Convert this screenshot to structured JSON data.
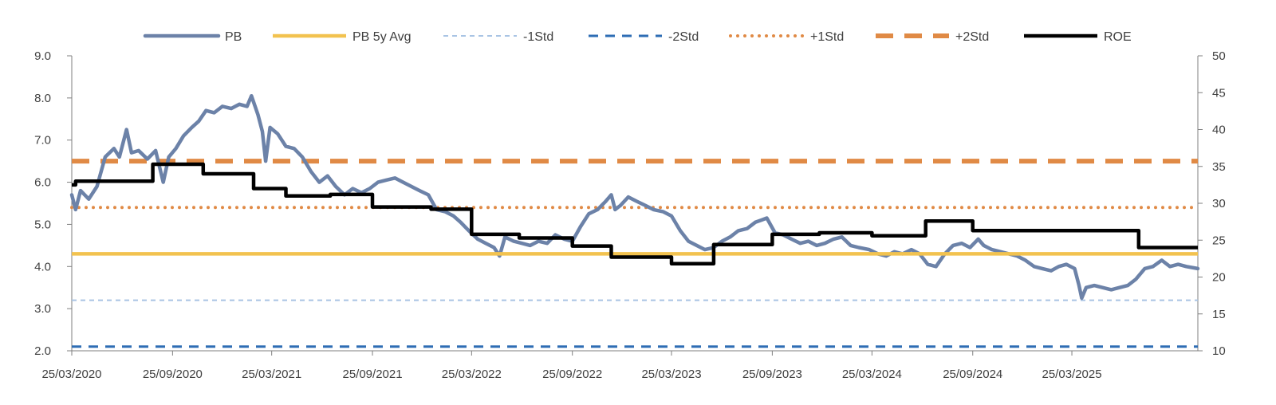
{
  "chart_data": {
    "type": "line",
    "title": "",
    "xlabel": "",
    "ylabel": "",
    "y2label": "",
    "x_range": [
      "2020-03-25",
      "2025-11-10"
    ],
    "ylim_left": [
      2.0,
      9.0
    ],
    "ylim_right": [
      10,
      50
    ],
    "yticks_left": [
      "2.0",
      "3.0",
      "4.0",
      "5.0",
      "6.0",
      "7.0",
      "8.0",
      "9.0"
    ],
    "yticks_right": [
      "10",
      "15",
      "20",
      "25",
      "30",
      "35",
      "40",
      "45",
      "50"
    ],
    "xticks": [
      {
        "date": "2020-03-25",
        "label": "25/03/2020"
      },
      {
        "date": "2020-09-25",
        "label": "25/09/2020"
      },
      {
        "date": "2021-03-25",
        "label": "25/03/2021"
      },
      {
        "date": "2021-09-25",
        "label": "25/09/2021"
      },
      {
        "date": "2022-03-25",
        "label": "25/03/2022"
      },
      {
        "date": "2022-09-25",
        "label": "25/09/2022"
      },
      {
        "date": "2023-03-25",
        "label": "25/03/2023"
      },
      {
        "date": "2023-09-25",
        "label": "25/09/2023"
      },
      {
        "date": "2024-03-25",
        "label": "25/03/2024"
      },
      {
        "date": "2024-09-25",
        "label": "25/09/2024"
      },
      {
        "date": "2025-03-25",
        "label": "25/03/2025"
      }
    ],
    "grid": false,
    "legend_position": "top",
    "series": [
      {
        "name": "PB",
        "axis": "left",
        "style": "solid",
        "color": "#6C82A8",
        "points": [
          [
            "2020-03-25",
            5.7
          ],
          [
            "2020-04-01",
            5.35
          ],
          [
            "2020-04-10",
            5.8
          ],
          [
            "2020-04-25",
            5.6
          ],
          [
            "2020-05-10",
            5.9
          ],
          [
            "2020-05-25",
            6.6
          ],
          [
            "2020-06-10",
            6.8
          ],
          [
            "2020-06-20",
            6.6
          ],
          [
            "2020-07-03",
            7.25
          ],
          [
            "2020-07-12",
            6.7
          ],
          [
            "2020-07-25",
            6.75
          ],
          [
            "2020-08-10",
            6.55
          ],
          [
            "2020-08-25",
            6.75
          ],
          [
            "2020-09-08",
            6.0
          ],
          [
            "2020-09-18",
            6.6
          ],
          [
            "2020-10-01",
            6.8
          ],
          [
            "2020-10-15",
            7.1
          ],
          [
            "2020-10-30",
            7.3
          ],
          [
            "2020-11-12",
            7.45
          ],
          [
            "2020-11-25",
            7.7
          ],
          [
            "2020-12-10",
            7.65
          ],
          [
            "2020-12-25",
            7.8
          ],
          [
            "2021-01-10",
            7.75
          ],
          [
            "2021-01-25",
            7.85
          ],
          [
            "2021-02-08",
            7.8
          ],
          [
            "2021-02-16",
            8.05
          ],
          [
            "2021-02-28",
            7.6
          ],
          [
            "2021-03-08",
            7.2
          ],
          [
            "2021-03-14",
            6.5
          ],
          [
            "2021-03-22",
            7.3
          ],
          [
            "2021-04-05",
            7.15
          ],
          [
            "2021-04-20",
            6.85
          ],
          [
            "2021-05-05",
            6.8
          ],
          [
            "2021-05-20",
            6.6
          ],
          [
            "2021-06-05",
            6.25
          ],
          [
            "2021-06-20",
            6.0
          ],
          [
            "2021-07-05",
            6.15
          ],
          [
            "2021-07-20",
            5.9
          ],
          [
            "2021-08-05",
            5.7
          ],
          [
            "2021-08-20",
            5.85
          ],
          [
            "2021-09-05",
            5.75
          ],
          [
            "2021-09-20",
            5.85
          ],
          [
            "2021-10-05",
            6.0
          ],
          [
            "2021-10-20",
            6.05
          ],
          [
            "2021-11-05",
            6.1
          ],
          [
            "2021-11-20",
            6.0
          ],
          [
            "2021-12-05",
            5.9
          ],
          [
            "2021-12-20",
            5.8
          ],
          [
            "2022-01-05",
            5.7
          ],
          [
            "2022-01-20",
            5.35
          ],
          [
            "2022-02-05",
            5.3
          ],
          [
            "2022-02-20",
            5.2
          ],
          [
            "2022-03-05",
            5.05
          ],
          [
            "2022-03-20",
            4.85
          ],
          [
            "2022-04-05",
            4.65
          ],
          [
            "2022-04-20",
            4.55
          ],
          [
            "2022-05-05",
            4.45
          ],
          [
            "2022-05-15",
            4.25
          ],
          [
            "2022-05-25",
            4.7
          ],
          [
            "2022-06-10",
            4.6
          ],
          [
            "2022-06-25",
            4.55
          ],
          [
            "2022-07-10",
            4.5
          ],
          [
            "2022-07-25",
            4.6
          ],
          [
            "2022-08-10",
            4.55
          ],
          [
            "2022-08-25",
            4.75
          ],
          [
            "2022-09-10",
            4.65
          ],
          [
            "2022-09-25",
            4.6
          ],
          [
            "2022-10-10",
            4.95
          ],
          [
            "2022-10-25",
            5.25
          ],
          [
            "2022-11-10",
            5.35
          ],
          [
            "2022-11-25",
            5.55
          ],
          [
            "2022-12-05",
            5.7
          ],
          [
            "2022-12-12",
            5.35
          ],
          [
            "2022-12-22",
            5.45
          ],
          [
            "2023-01-05",
            5.65
          ],
          [
            "2023-01-20",
            5.55
          ],
          [
            "2023-02-05",
            5.45
          ],
          [
            "2023-02-20",
            5.35
          ],
          [
            "2023-03-10",
            5.3
          ],
          [
            "2023-03-25",
            5.2
          ],
          [
            "2023-04-10",
            4.85
          ],
          [
            "2023-04-25",
            4.6
          ],
          [
            "2023-05-10",
            4.5
          ],
          [
            "2023-05-25",
            4.4
          ],
          [
            "2023-06-10",
            4.45
          ],
          [
            "2023-06-25",
            4.6
          ],
          [
            "2023-07-10",
            4.7
          ],
          [
            "2023-07-25",
            4.85
          ],
          [
            "2023-08-10",
            4.9
          ],
          [
            "2023-08-25",
            5.05
          ],
          [
            "2023-09-05",
            5.1
          ],
          [
            "2023-09-15",
            5.15
          ],
          [
            "2023-09-30",
            4.8
          ],
          [
            "2023-10-15",
            4.75
          ],
          [
            "2023-10-30",
            4.65
          ],
          [
            "2023-11-15",
            4.55
          ],
          [
            "2023-11-30",
            4.6
          ],
          [
            "2023-12-15",
            4.5
          ],
          [
            "2023-12-30",
            4.55
          ],
          [
            "2024-01-15",
            4.65
          ],
          [
            "2024-01-30",
            4.7
          ],
          [
            "2024-02-15",
            4.5
          ],
          [
            "2024-03-01",
            4.45
          ],
          [
            "2024-03-20",
            4.4
          ],
          [
            "2024-04-05",
            4.3
          ],
          [
            "2024-04-20",
            4.25
          ],
          [
            "2024-05-05",
            4.35
          ],
          [
            "2024-05-20",
            4.3
          ],
          [
            "2024-06-05",
            4.4
          ],
          [
            "2024-06-20",
            4.3
          ],
          [
            "2024-07-05",
            4.05
          ],
          [
            "2024-07-20",
            4.0
          ],
          [
            "2024-08-05",
            4.3
          ],
          [
            "2024-08-20",
            4.5
          ],
          [
            "2024-09-05",
            4.55
          ],
          [
            "2024-09-20",
            4.45
          ],
          [
            "2024-10-05",
            4.65
          ],
          [
            "2024-10-15",
            4.5
          ],
          [
            "2024-10-30",
            4.4
          ],
          [
            "2024-11-15",
            4.35
          ],
          [
            "2024-11-30",
            4.3
          ],
          [
            "2024-12-15",
            4.25
          ],
          [
            "2024-12-30",
            4.15
          ],
          [
            "2025-01-15",
            4.0
          ],
          [
            "2025-01-30",
            3.95
          ],
          [
            "2025-02-15",
            3.9
          ],
          [
            "2025-03-01",
            4.0
          ],
          [
            "2025-03-15",
            4.05
          ],
          [
            "2025-03-30",
            3.95
          ],
          [
            "2025-04-07",
            3.55
          ],
          [
            "2025-04-12",
            3.25
          ],
          [
            "2025-04-20",
            3.5
          ],
          [
            "2025-05-05",
            3.55
          ],
          [
            "2025-05-20",
            3.5
          ],
          [
            "2025-06-05",
            3.45
          ],
          [
            "2025-06-20",
            3.5
          ],
          [
            "2025-07-05",
            3.55
          ],
          [
            "2025-07-20",
            3.7
          ],
          [
            "2025-08-05",
            3.95
          ],
          [
            "2025-08-20",
            4.0
          ],
          [
            "2025-09-05",
            4.15
          ],
          [
            "2025-09-20",
            4.0
          ],
          [
            "2025-10-05",
            4.05
          ],
          [
            "2025-10-20",
            4.0
          ],
          [
            "2025-11-10",
            3.95
          ]
        ]
      },
      {
        "name": "PB 5y Avg",
        "axis": "left",
        "style": "solid-thick",
        "color": "#F2C24F",
        "value": 4.3
      },
      {
        "name": "-1Std",
        "axis": "left",
        "style": "dashed-thin",
        "color": "#A9C4E4",
        "value": 3.2
      },
      {
        "name": "-2Std",
        "axis": "left",
        "style": "dashed",
        "color": "#2E6DB4",
        "value": 2.1
      },
      {
        "name": "+1Std",
        "axis": "left",
        "style": "dotted",
        "color": "#E08A45",
        "value": 5.4
      },
      {
        "name": "+2Std",
        "axis": "left",
        "style": "dashed-thick",
        "color": "#E08A45",
        "value": 6.5
      },
      {
        "name": "ROE",
        "axis": "right",
        "style": "step",
        "color": "#000000",
        "points": [
          [
            "2020-03-25",
            32.5
          ],
          [
            "2020-04-01",
            33.0
          ],
          [
            "2020-08-20",
            35.3
          ],
          [
            "2020-11-20",
            34.0
          ],
          [
            "2021-02-20",
            32.0
          ],
          [
            "2021-04-20",
            31.0
          ],
          [
            "2021-07-10",
            31.2
          ],
          [
            "2021-09-25",
            29.5
          ],
          [
            "2022-01-10",
            29.2
          ],
          [
            "2022-03-25",
            25.8
          ],
          [
            "2022-06-20",
            25.3
          ],
          [
            "2022-09-25",
            24.2
          ],
          [
            "2022-12-05",
            22.7
          ],
          [
            "2023-03-25",
            21.8
          ],
          [
            "2023-06-10",
            24.4
          ],
          [
            "2023-09-25",
            25.8
          ],
          [
            "2023-12-20",
            26.0
          ],
          [
            "2024-03-25",
            25.6
          ],
          [
            "2024-07-01",
            27.6
          ],
          [
            "2024-09-25",
            26.3
          ],
          [
            "2025-07-25",
            24.0
          ],
          [
            "2025-11-10",
            24.0
          ]
        ]
      }
    ]
  }
}
